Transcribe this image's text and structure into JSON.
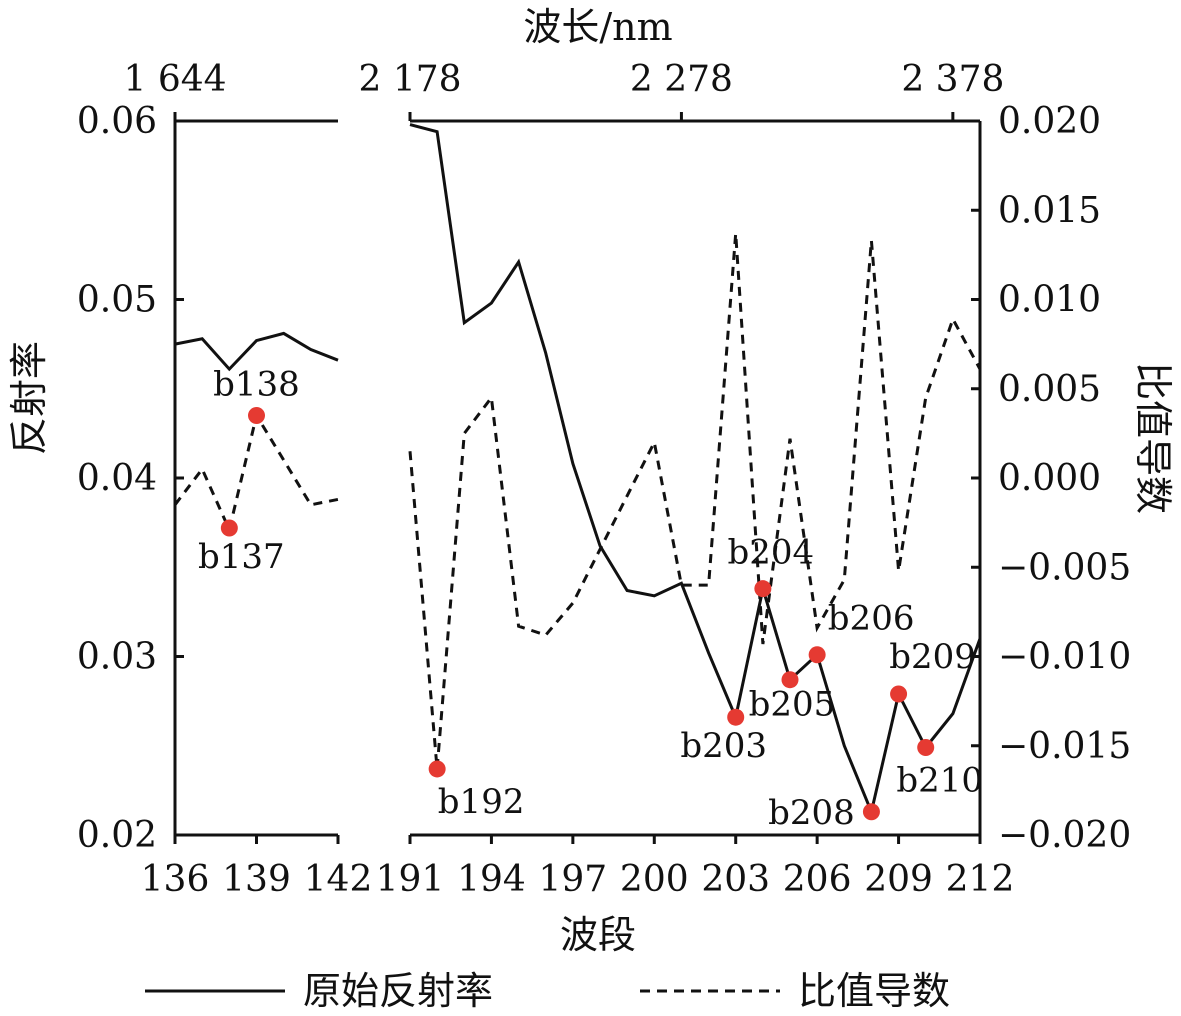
{
  "chart_data": {
    "type": "line",
    "title": "",
    "xlabel": "波段",
    "x2label": "波长/nm",
    "ylabel": "反射率",
    "y2label": "比值导数",
    "panels": [
      {
        "xlim": [
          136,
          142
        ],
        "xticks": [
          136,
          139,
          142
        ],
        "top_tick_labels": [
          {
            "band": 136,
            "label": "1 644"
          }
        ]
      },
      {
        "xlim": [
          191,
          212
        ],
        "xticks": [
          191,
          194,
          197,
          200,
          203,
          206,
          209,
          212
        ],
        "top_tick_labels": [
          {
            "band": 191,
            "label": "2 178"
          },
          {
            "band": 201,
            "label": "2 278"
          },
          {
            "band": 211,
            "label": "2 378"
          }
        ]
      }
    ],
    "ylim": [
      0.02,
      0.06
    ],
    "yticks": [
      "0.02",
      "0.03",
      "0.04",
      "0.05",
      "0.06"
    ],
    "y2lim": [
      -0.02,
      0.02
    ],
    "y2ticks": [
      "−0.020",
      "−0.015",
      "−0.010",
      "−0.005",
      "0.000",
      "0.005",
      "0.010",
      "0.015",
      "0.020"
    ],
    "grid": false,
    "legend_position": "bottom",
    "series": [
      {
        "name": "原始反射率",
        "axis": "left",
        "style": "solid",
        "segments": [
          {
            "x": [
              136,
              137,
              138,
              139,
              140,
              141,
              142
            ],
            "y": [
              0.0475,
              0.0478,
              0.0461,
              0.0477,
              0.0481,
              0.0472,
              0.0466
            ]
          },
          {
            "x": [
              191,
              192,
              193,
              194,
              195,
              196,
              197,
              198,
              199,
              200,
              201,
              202,
              203,
              204,
              205,
              206,
              207,
              208,
              209,
              210,
              211,
              212
            ],
            "y": [
              0.0598,
              0.0594,
              0.0487,
              0.0498,
              0.0521,
              0.047,
              0.0408,
              0.0362,
              0.0337,
              0.0334,
              0.0341,
              0.0302,
              0.0266,
              0.0338,
              0.0287,
              0.0301,
              0.025,
              0.0213,
              0.0279,
              0.0249,
              0.0268,
              0.031
            ]
          }
        ]
      },
      {
        "name": "比值导数",
        "axis": "right",
        "style": "dashed",
        "segments": [
          {
            "x": [
              136,
              137,
              138,
              139,
              140,
              141,
              142
            ],
            "y": [
              -0.0015,
              0.0005,
              -0.0029,
              0.0035,
              0.001,
              -0.0015,
              -0.0012
            ]
          },
          {
            "x": [
              191,
              192,
              193,
              194,
              195,
              196,
              197,
              198,
              199,
              200,
              201,
              202,
              203,
              204,
              205,
              206,
              207,
              208,
              209,
              210,
              211,
              212
            ],
            "y": [
              0.0015,
              -0.0163,
              0.0025,
              0.0045,
              -0.0083,
              -0.0088,
              -0.007,
              -0.004,
              -0.001,
              0.002,
              -0.006,
              -0.006,
              0.0137,
              -0.0093,
              0.0022,
              -0.0084,
              -0.0057,
              0.0133,
              -0.0052,
              0.0045,
              0.0089,
              0.0061
            ]
          }
        ]
      }
    ],
    "annotations": [
      {
        "label": "b137",
        "x": 138,
        "y": 0.0372
      },
      {
        "label": "b138",
        "x": 139,
        "y": 0.0435
      },
      {
        "label": "b192",
        "x": 192,
        "y": 0.0237
      },
      {
        "label": "b203",
        "x": 203,
        "y": 0.0266
      },
      {
        "label": "b204",
        "x": 204,
        "y": 0.0338
      },
      {
        "label": "b205",
        "x": 205,
        "y": 0.0287
      },
      {
        "label": "b206",
        "x": 206,
        "y": 0.0301
      },
      {
        "label": "b208",
        "x": 208,
        "y": 0.0213
      },
      {
        "label": "b209",
        "x": 209,
        "y": 0.0279
      },
      {
        "label": "b210",
        "x": 210,
        "y": 0.0249
      }
    ],
    "marker_color": "#e53a32"
  }
}
